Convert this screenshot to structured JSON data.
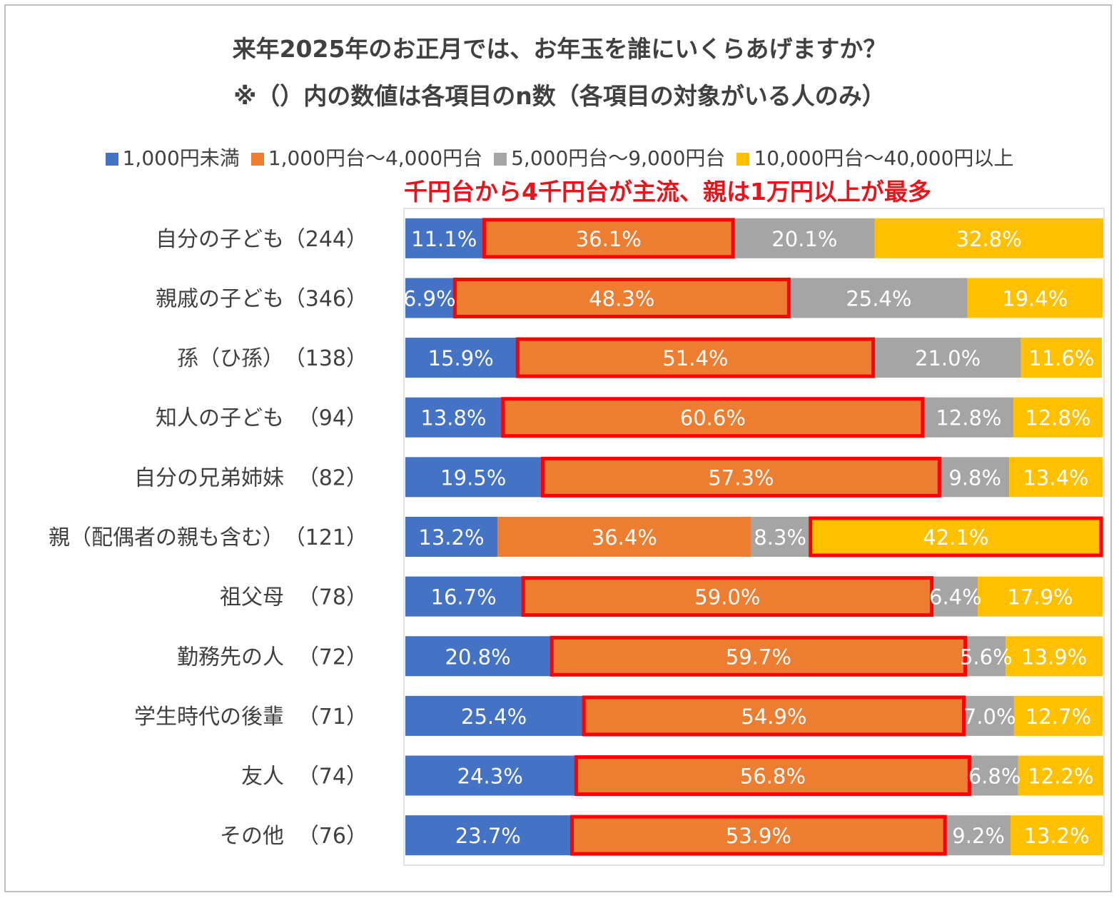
{
  "title_line1": "来年2025年のお正月では、お年玉を誰にいくらあげますか？",
  "title_line2": "※（）内の数値は各項目のn数（各項目の対象がいる人のみ）",
  "annotation": "千円台から4千円台が主流、親は1万円以上が最多",
  "colors": {
    "blue": "#4472C4",
    "orange": "#ED7D31",
    "gray": "#A5A5A5",
    "yellow": "#FFC000",
    "highlight": "#FF0000"
  },
  "chart_data": {
    "type": "bar",
    "orientation": "horizontal",
    "stacked": true,
    "normalized_100": true,
    "title": "来年2025年のお正月では、お年玉を誰にいくらあげますか？",
    "subtitle": "※（）内の数値は各項目のn数（各項目の対象がいる人のみ）",
    "legend_position": "top",
    "categories": [
      "自分の子ども",
      "親戚の子ども",
      "孫（ひ孫）",
      "知人の子ども",
      "自分の兄弟姉妹",
      "親（配偶者の親も含む）",
      "祖父母",
      "勤務先の人",
      "学生時代の後輩",
      "友人",
      "その他"
    ],
    "n_labels": [
      "（244）",
      "（346）",
      "（138）",
      "（94）",
      "（82）",
      "（121）",
      "（78）",
      "（72）",
      "（71）",
      "（74）",
      "（76）"
    ],
    "series": [
      {
        "name": "1,000円未満",
        "color": "#4472C4",
        "values": [
          11.1,
          6.9,
          15.9,
          13.8,
          19.5,
          13.2,
          16.7,
          20.8,
          25.4,
          24.3,
          23.7
        ]
      },
      {
        "name": "1,000円台～4,000円台",
        "color": "#ED7D31",
        "values": [
          36.1,
          48.3,
          51.4,
          60.6,
          57.3,
          36.4,
          59.0,
          59.7,
          54.9,
          56.8,
          53.9
        ]
      },
      {
        "name": "5,000円台～9,000円台",
        "color": "#A5A5A5",
        "values": [
          20.1,
          25.4,
          21.0,
          12.8,
          9.8,
          8.3,
          6.4,
          5.6,
          7.0,
          6.8,
          9.2
        ]
      },
      {
        "name": "10,000円台～40,000円以上",
        "color": "#FFC000",
        "values": [
          32.8,
          19.4,
          11.6,
          12.8,
          13.4,
          42.1,
          17.9,
          13.9,
          12.7,
          12.2,
          13.2
        ]
      }
    ],
    "value_labels": [
      [
        "11.1%",
        "36.1%",
        "20.1%",
        "32.8%"
      ],
      [
        "6.9%",
        "48.3%",
        "25.4%",
        "19.4%"
      ],
      [
        "15.9%",
        "51.4%",
        "21.0%",
        "11.6%"
      ],
      [
        "13.8%",
        "60.6%",
        "12.8%",
        "12.8%"
      ],
      [
        "19.5%",
        "57.3%",
        "9.8%",
        "13.4%"
      ],
      [
        "13.2%",
        "36.4%",
        "8.3%",
        "42.1%"
      ],
      [
        "16.7%",
        "59.0%",
        "6.4%",
        "17.9%"
      ],
      [
        "20.8%",
        "59.7%",
        "5.6%",
        "13.9%"
      ],
      [
        "25.4%",
        "54.9%",
        "7.0%",
        "12.7%"
      ],
      [
        "24.3%",
        "56.8%",
        "6.8%",
        "12.2%"
      ],
      [
        "23.7%",
        "53.9%",
        "9.2%",
        "13.2%"
      ]
    ],
    "highlighted_segment_index": [
      1,
      1,
      1,
      1,
      1,
      3,
      1,
      1,
      1,
      1,
      1
    ],
    "xlim": [
      0,
      100
    ]
  }
}
